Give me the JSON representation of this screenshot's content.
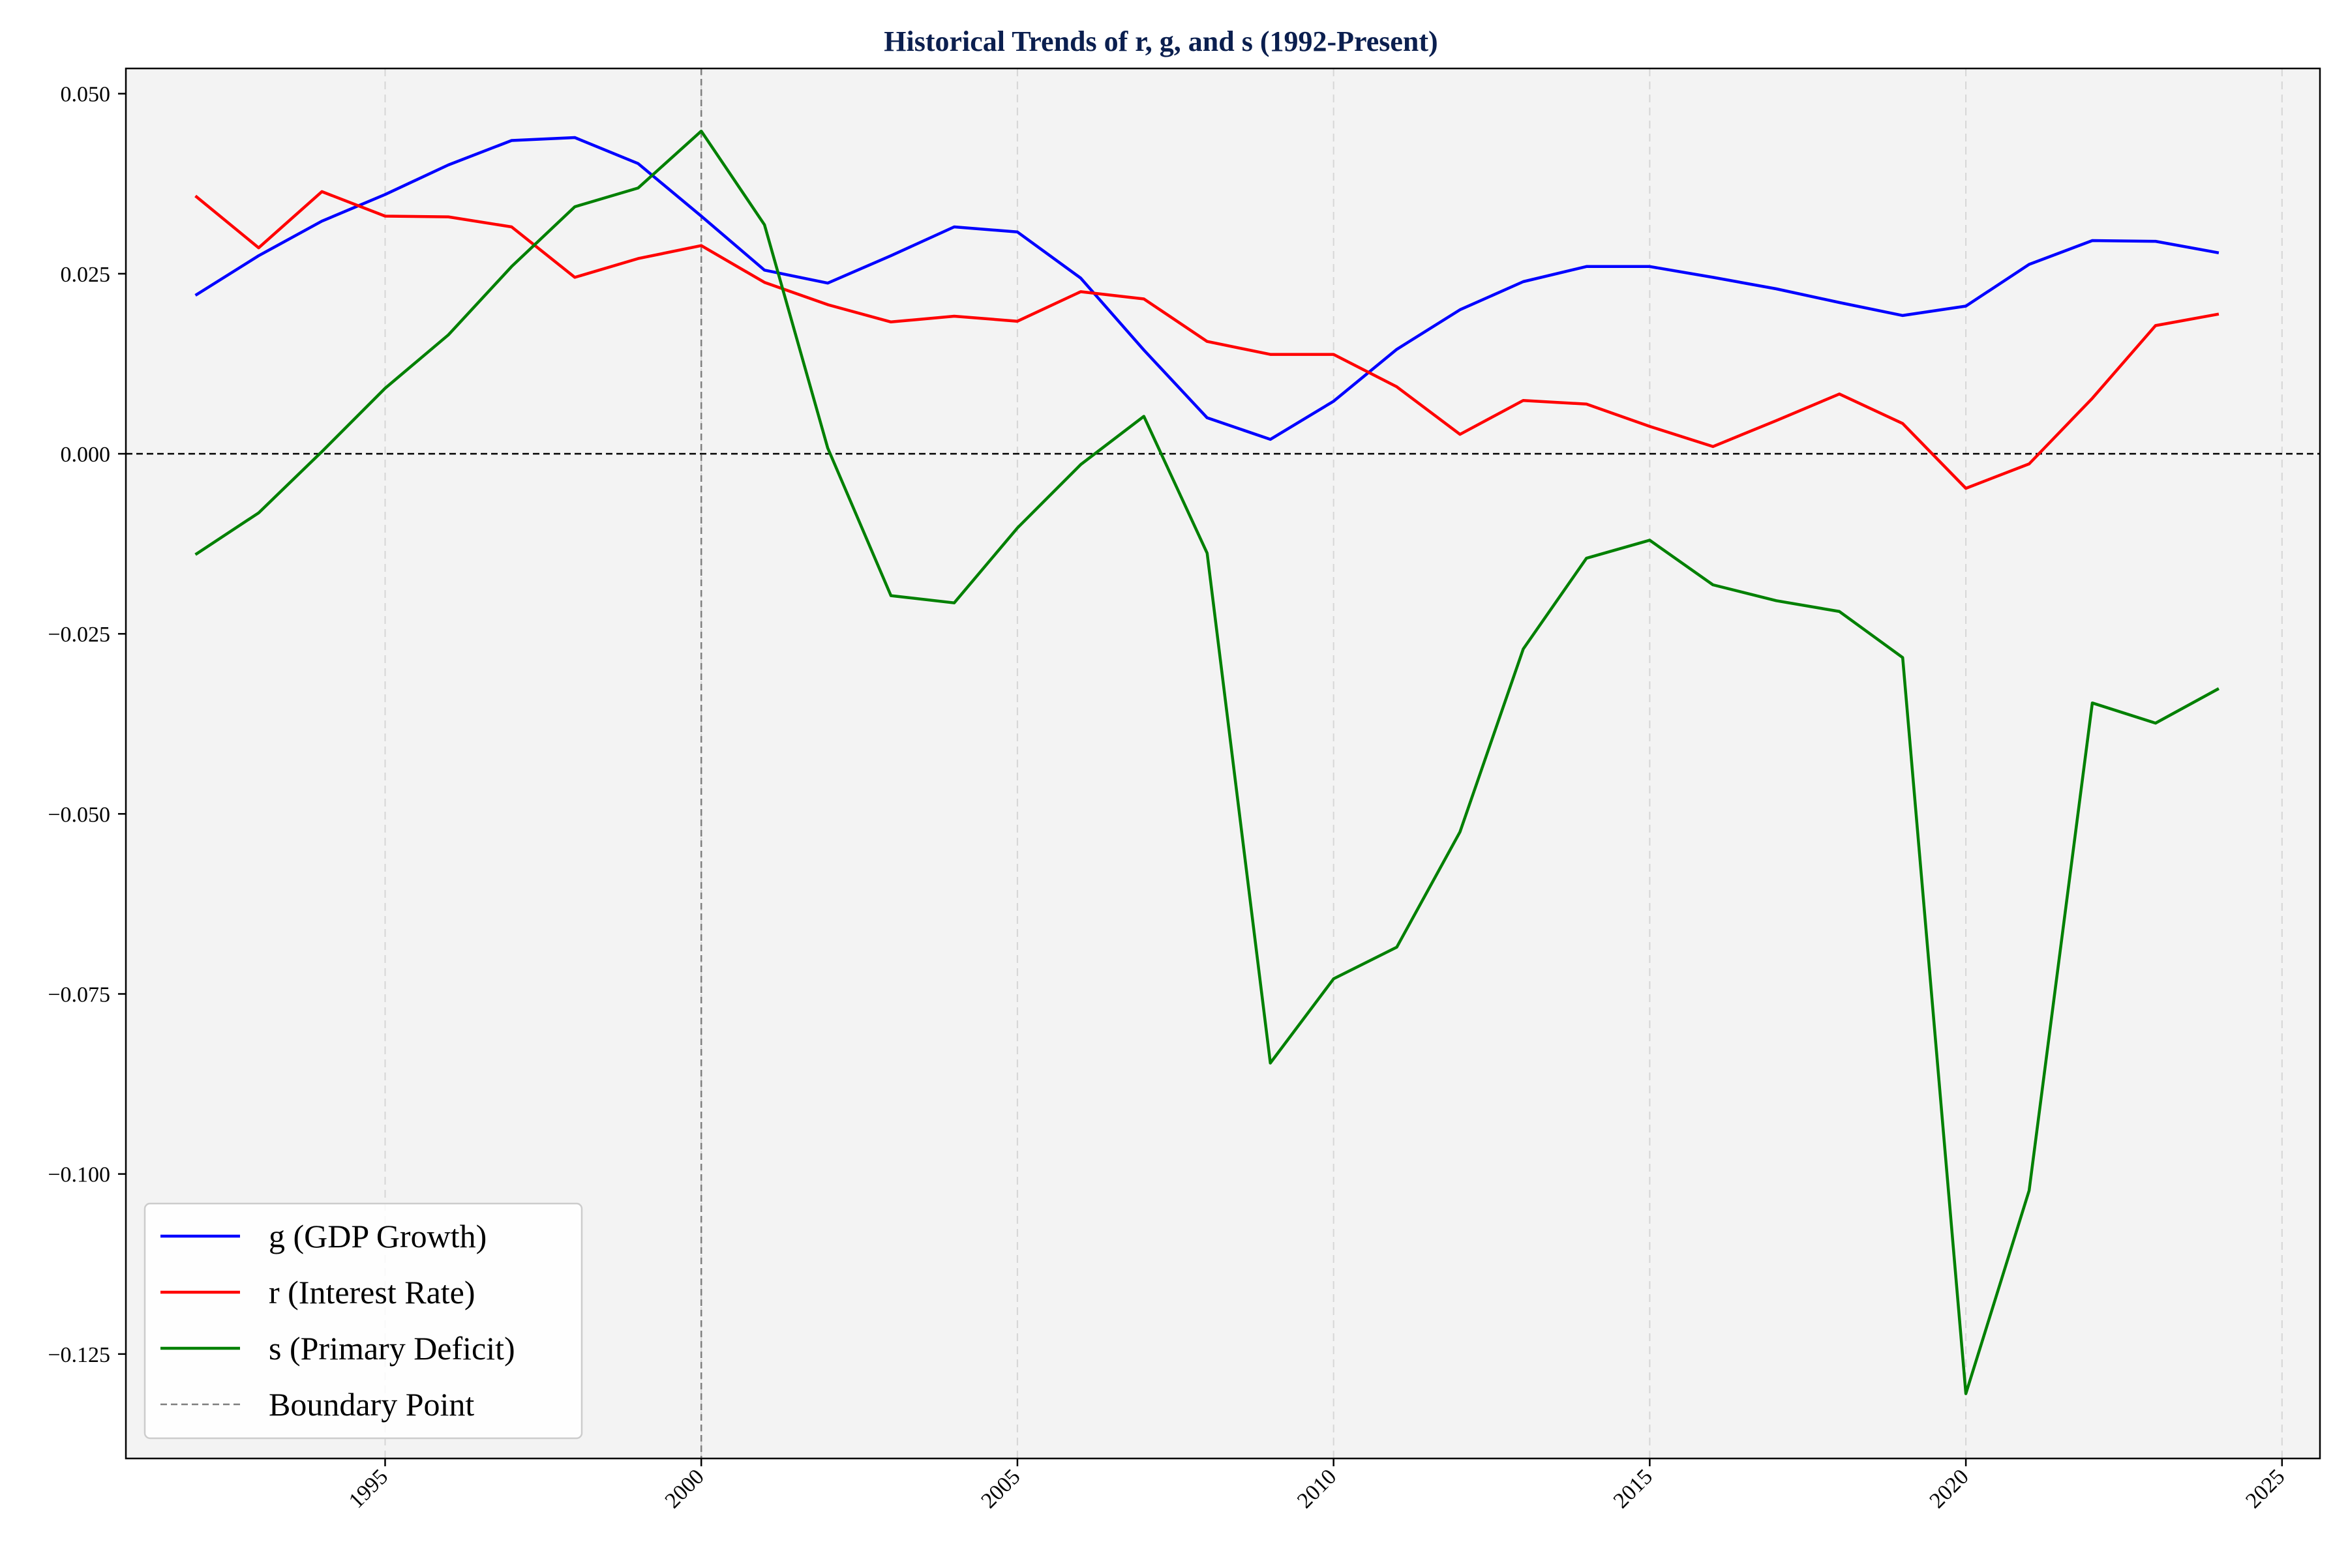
{
  "chart_data": {
    "type": "line",
    "title": "Historical Trends of r, g, and s (1992-Present)",
    "xlabel": "",
    "ylabel": "",
    "x": [
      1992,
      1993,
      1994,
      1995,
      1996,
      1997,
      1998,
      1999,
      2000,
      2001,
      2002,
      2003,
      2004,
      2005,
      2006,
      2007,
      2008,
      2009,
      2010,
      2011,
      2012,
      2013,
      2014,
      2015,
      2016,
      2017,
      2018,
      2019,
      2020,
      2021,
      2022,
      2023,
      2024
    ],
    "xlim": [
      1990.9,
      2025.6
    ],
    "ylim": [
      -0.1395,
      0.0535
    ],
    "x_ticks": [
      1995,
      2000,
      2005,
      2010,
      2015,
      2020,
      2025
    ],
    "x_tick_labels": [
      "1995",
      "2000",
      "2005",
      "2010",
      "2015",
      "2020",
      "2025"
    ],
    "y_ticks": [
      0.05,
      0.025,
      0.0,
      -0.025,
      -0.05,
      -0.075,
      -0.1,
      -0.125
    ],
    "y_tick_labels": [
      "0.050",
      "0.025",
      "0.000",
      "−0.025",
      "−0.050",
      "−0.075",
      "−0.100",
      "−0.125"
    ],
    "x_tick_rotation": -45,
    "grid": "vertical-dashed",
    "background": "#f3f3f3",
    "zero_line": {
      "y": 0.0,
      "color": "#000000",
      "style": "dashed"
    },
    "boundary_line": {
      "x": 2000,
      "label": "Boundary Point",
      "color": "#7f7f7f",
      "style": "dashed"
    },
    "legend_position": "lower-left",
    "series": [
      {
        "name": "g (GDP Growth)",
        "color": "#0000ff",
        "values": [
          0.022,
          0.0275,
          0.0323,
          0.036,
          0.0401,
          0.0435,
          0.0439,
          0.0403,
          0.033,
          0.0255,
          0.0237,
          0.0275,
          0.0315,
          0.0308,
          0.0244,
          0.0144,
          0.005,
          0.002,
          0.0073,
          0.0145,
          0.02,
          0.0239,
          0.026,
          0.026,
          0.0245,
          0.0229,
          0.021,
          0.0192,
          0.0205,
          0.0263,
          0.0296,
          0.0295,
          0.0279
        ]
      },
      {
        "name": "r (Interest Rate)",
        "color": "#ff0000",
        "values": [
          0.0358,
          0.0286,
          0.0364,
          0.033,
          0.0329,
          0.0315,
          0.0245,
          0.0271,
          0.0289,
          0.0238,
          0.0207,
          0.0183,
          0.0191,
          0.0184,
          0.0225,
          0.0215,
          0.0156,
          0.0138,
          0.0138,
          0.0093,
          0.0027,
          0.0074,
          0.0069,
          0.0038,
          0.001,
          0.0046,
          0.0083,
          0.0042,
          -0.0048,
          -0.0014,
          0.0077,
          0.0178,
          0.0194
        ]
      },
      {
        "name": "s (Primary Deficit)",
        "color": "#008000",
        "values": [
          -0.014,
          -0.0082,
          0.0003,
          0.0091,
          0.0165,
          0.026,
          0.0343,
          0.0369,
          0.0448,
          0.0318,
          0.0008,
          -0.0197,
          -0.0207,
          -0.0103,
          -0.0015,
          0.0052,
          -0.0138,
          -0.0846,
          -0.0729,
          -0.0685,
          -0.0525,
          -0.0271,
          -0.0145,
          -0.012,
          -0.0182,
          -0.0204,
          -0.0219,
          -0.0283,
          -0.1305,
          -0.1023,
          -0.0346,
          -0.0374,
          -0.0326
        ]
      }
    ]
  }
}
